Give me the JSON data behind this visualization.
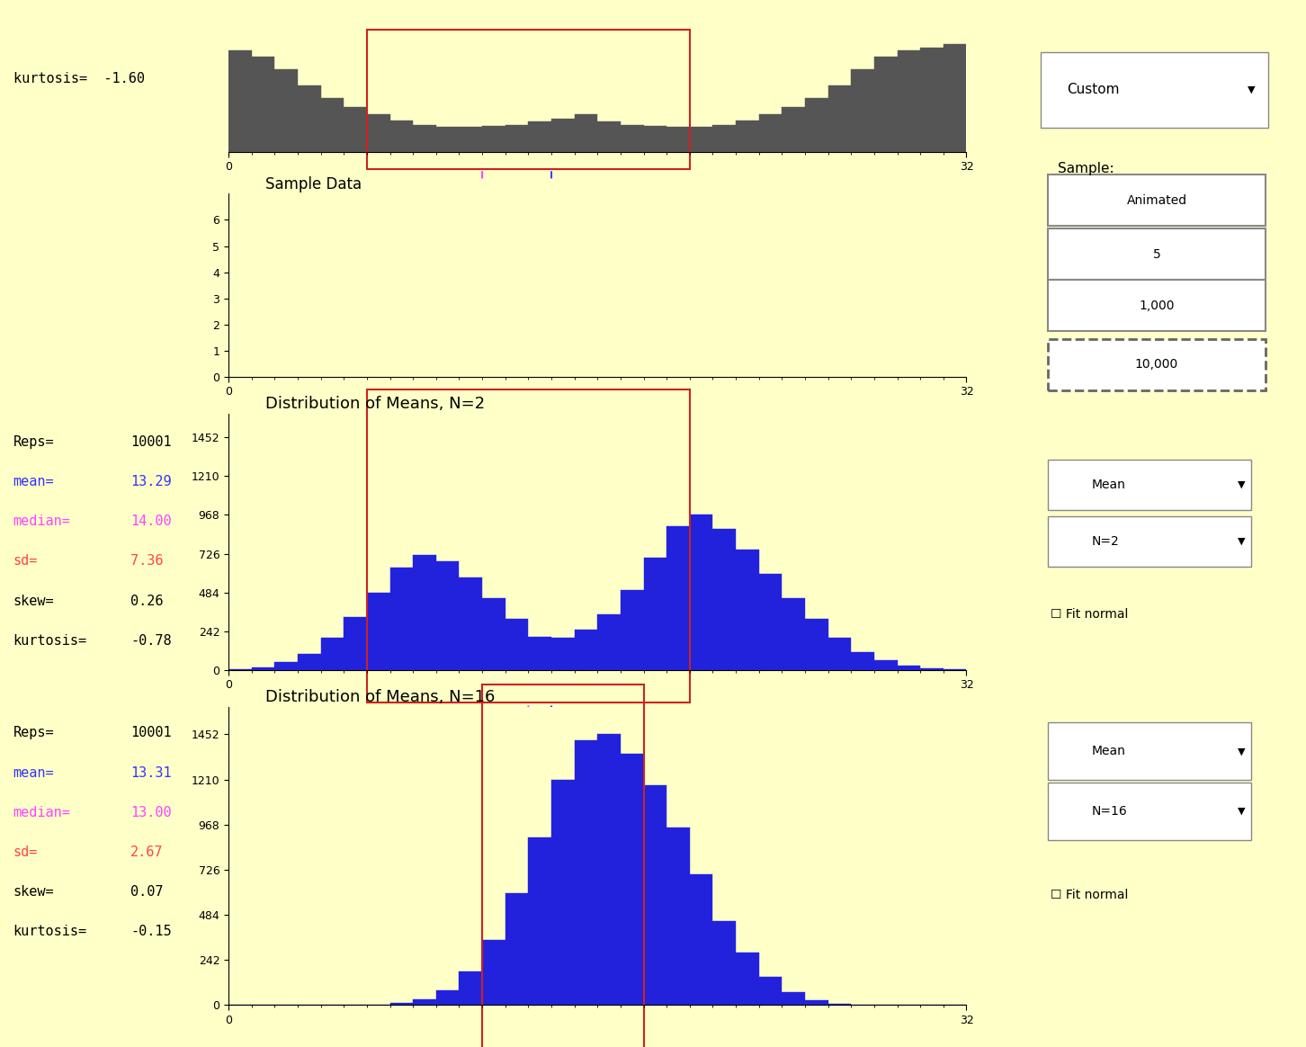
{
  "bg_color": "#FFFFC8",
  "title1": "Sample Data",
  "title2": "Distribution of Means, N=2",
  "title3": "Distribution of Means, N=16",
  "top_hist_color": "#555555",
  "top_hist_bins": [
    0,
    1,
    2,
    3,
    4,
    5,
    6,
    7,
    8,
    9,
    10,
    11,
    12,
    13,
    14,
    15,
    16,
    17,
    18,
    19,
    20,
    21,
    22,
    23,
    24,
    25,
    26,
    27,
    28,
    29,
    30,
    31,
    32
  ],
  "top_hist_vals": [
    320,
    300,
    260,
    210,
    170,
    140,
    120,
    100,
    85,
    80,
    80,
    82,
    85,
    95,
    105,
    120,
    95,
    85,
    82,
    80,
    80,
    85,
    100,
    120,
    140,
    170,
    210,
    260,
    300,
    320,
    330,
    340
  ],
  "dist_n2_color": "#2222DD",
  "dist_n2_bins": [
    0,
    1,
    2,
    3,
    4,
    5,
    6,
    7,
    8,
    9,
    10,
    11,
    12,
    13,
    14,
    15,
    16,
    17,
    18,
    19,
    20,
    21,
    22,
    23,
    24,
    25,
    26,
    27,
    28,
    29,
    30,
    31,
    32
  ],
  "dist_n2_vals": [
    5,
    15,
    50,
    100,
    200,
    330,
    480,
    640,
    720,
    680,
    580,
    450,
    320,
    210,
    200,
    250,
    350,
    500,
    700,
    900,
    968,
    880,
    750,
    600,
    450,
    320,
    200,
    110,
    60,
    30,
    10,
    5
  ],
  "dist_n16_color": "#2222DD",
  "dist_n16_bins": [
    0,
    1,
    2,
    3,
    4,
    5,
    6,
    7,
    8,
    9,
    10,
    11,
    12,
    13,
    14,
    15,
    16,
    17,
    18,
    19,
    20,
    21,
    22,
    23,
    24,
    25,
    26,
    27,
    28,
    29,
    30,
    31,
    32
  ],
  "dist_n16_vals": [
    0,
    0,
    0,
    0,
    0,
    0,
    0,
    10,
    30,
    80,
    180,
    350,
    600,
    900,
    1210,
    1420,
    1452,
    1350,
    1180,
    950,
    700,
    450,
    280,
    150,
    70,
    25,
    8,
    2,
    0,
    0,
    0,
    0
  ],
  "n2_yticks": [
    0,
    242,
    484,
    726,
    968,
    1210,
    1452
  ],
  "n16_yticks": [
    0,
    242,
    484,
    726,
    968,
    1210,
    1452
  ],
  "reps1_label": "Reps=",
  "reps1_val": "10001",
  "mean1_label": "mean=",
  "mean1_val": "13.29",
  "median1_label": "median=",
  "median1_val": "14.00",
  "sd1_label": "sd=",
  "sd1_val": "7.36",
  "skew1_label": "skew=",
  "skew1_val": "0.26",
  "kurt1_label": "kurtosis=",
  "kurt1_val": "-0.78",
  "reps2_label": "Reps=",
  "reps2_val": "10001",
  "mean2_label": "mean=",
  "mean2_val": "13.31",
  "median2_label": "median=",
  "median2_val": "13.00",
  "sd2_label": "sd=",
  "sd2_val": "2.67",
  "skew2_label": "skew=",
  "skew2_val": "0.07",
  "kurt2_label": "kurtosis=",
  "kurt2_val": "-0.15",
  "top_kurtosis_label": "kurtosis=",
  "top_kurtosis_val": "  -1.60",
  "col_black": "#000000",
  "col_blue": "#3333FF",
  "col_magenta": "#FF44FF",
  "col_red": "#FF4444",
  "red_box_color": "#CC2222",
  "marker_blue": "#4444FF",
  "marker_magenta": "#FF44FF"
}
